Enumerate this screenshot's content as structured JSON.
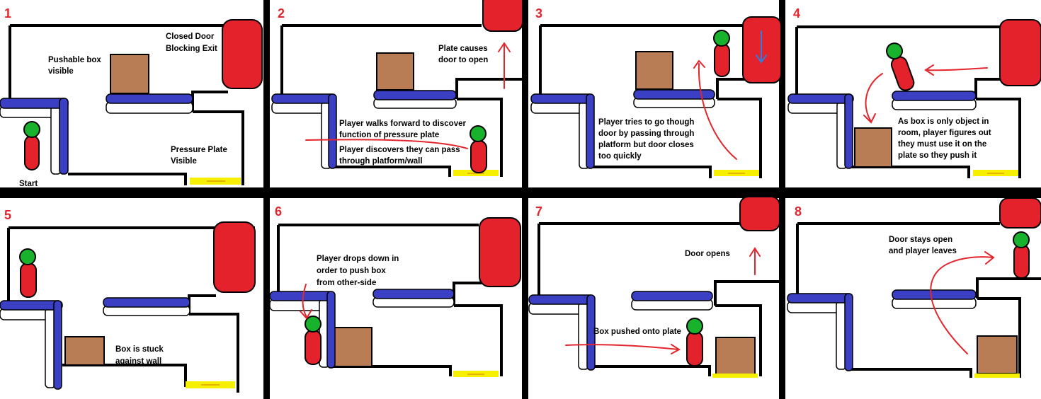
{
  "panels": [
    {
      "number": "1",
      "captions": [
        "Closed Door",
        "Blocking Exit",
        "Pushable box",
        "visible",
        "Pressure Plate",
        "Visible",
        "Start"
      ]
    },
    {
      "number": "2",
      "captions": [
        "Plate causes",
        "door to open",
        "Player walks forward to discover",
        "function of pressure plate",
        "Player discovers they can pass",
        "through platform/wall"
      ]
    },
    {
      "number": "3",
      "captions": [
        "Player tries to go though",
        "door by passing through",
        "platform but door closes",
        "too quickly"
      ]
    },
    {
      "number": "4",
      "captions": [
        "As box is only object in",
        "room, player figures out",
        "they must use it on the",
        "plate so they push it"
      ]
    },
    {
      "number": "5",
      "captions": [
        "Box is stuck",
        "against wall"
      ]
    },
    {
      "number": "6",
      "captions": [
        "Player drops down in",
        "order to push box",
        "from other-side"
      ]
    },
    {
      "number": "7",
      "captions": [
        "Door opens",
        "Box pushed onto plate"
      ]
    },
    {
      "number": "8",
      "captions": [
        "Door stays open",
        "and player leaves"
      ]
    }
  ],
  "colors": {
    "number": "#e3262d",
    "arrow": "#e3262d",
    "door": "#e3222b",
    "box": "#b97d56",
    "platform": "#3a3fc4",
    "plate": "#f6f000",
    "player_head": "#19b22c",
    "player_body": "#e3222b",
    "door_arrow": "#2f7de1"
  }
}
